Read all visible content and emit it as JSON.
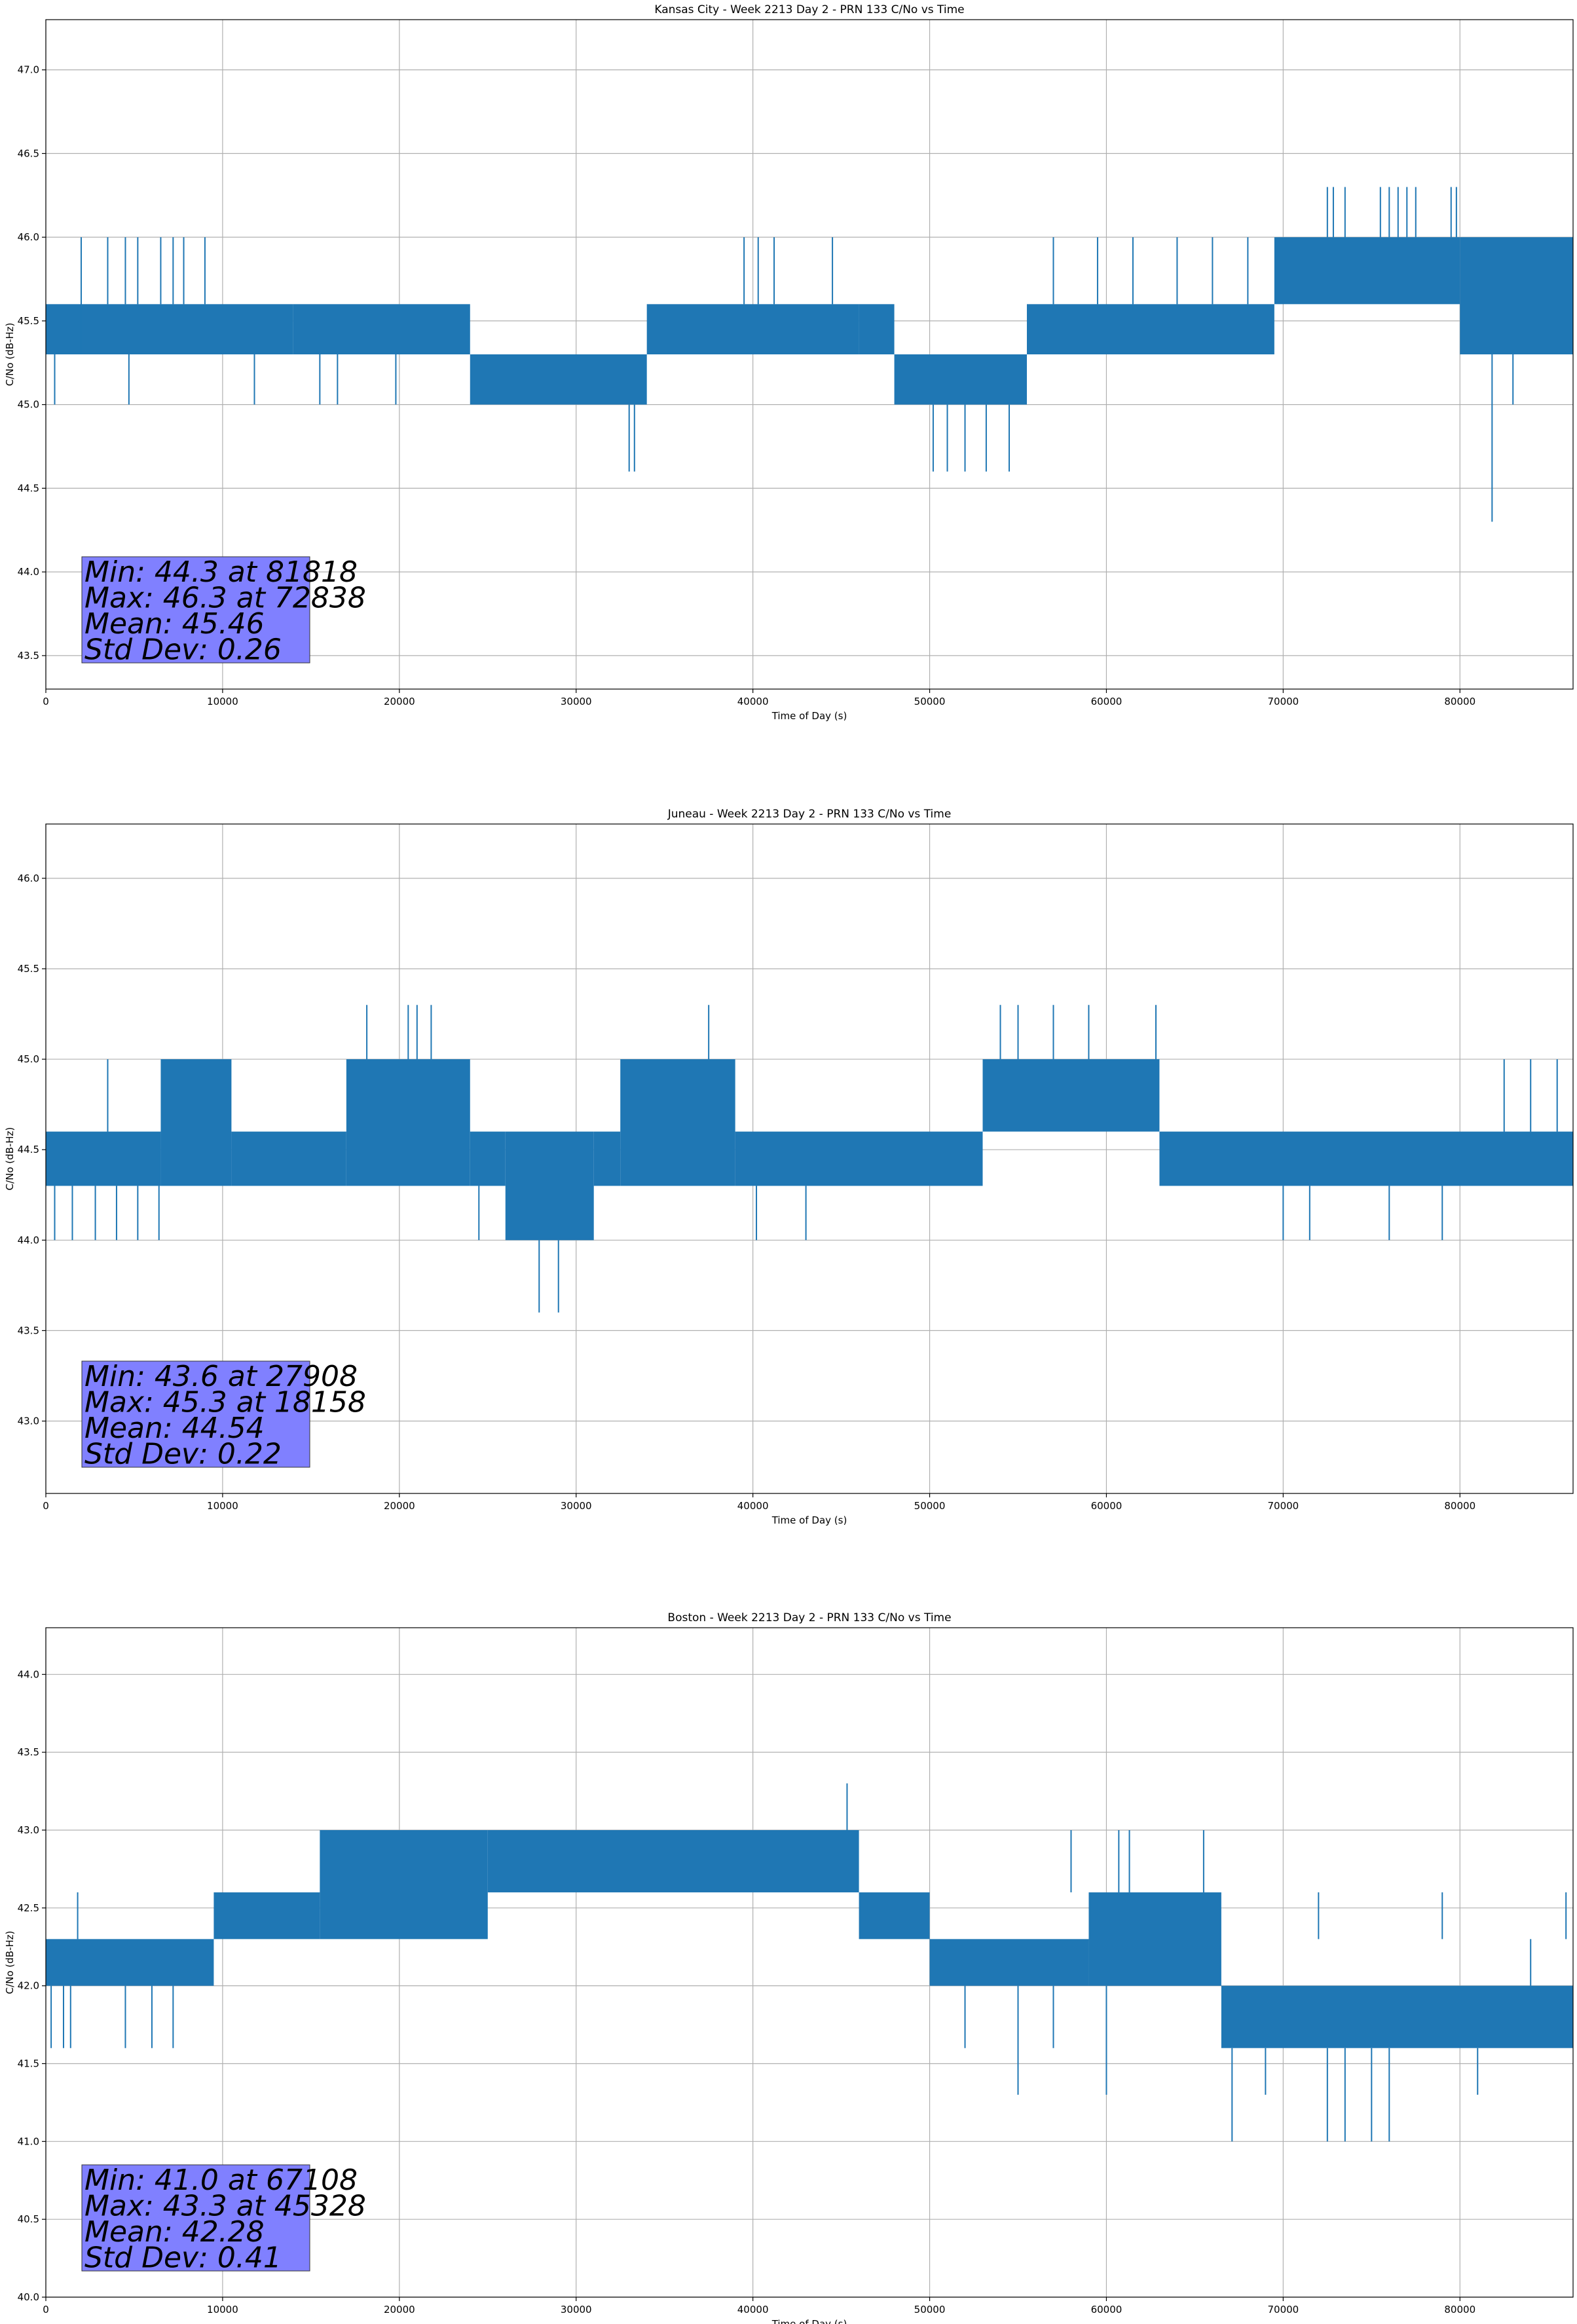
{
  "chart_data": [
    {
      "type": "line",
      "title": "Kansas City - Week 2213 Day 2 - PRN 133 C/No vs Time",
      "xlabel": "Time of Day (s)",
      "ylabel": "C/No (dB-Hz)",
      "xlim": [
        0,
        86400
      ],
      "ylim": [
        43.3,
        47.3
      ],
      "grid": true,
      "xticks": [
        0,
        10000,
        20000,
        30000,
        40000,
        50000,
        60000,
        70000,
        80000
      ],
      "yticks": [
        "43.5",
        "44.0",
        "44.5",
        "45.0",
        "45.5",
        "46.0",
        "46.5",
        "47.0"
      ],
      "color": "#1f77b4",
      "stats": [
        "Min: 44.3 at 81818",
        "Max: 46.3 at 72838",
        "Mean: 45.46",
        "Std Dev: 0.26"
      ],
      "series": [
        {
          "segments": [
            {
              "x0": 0,
              "x1": 14000,
              "lo": 45.3,
              "hi": 45.6
            },
            {
              "x0": 14000,
              "x1": 24000,
              "lo": 45.3,
              "hi": 45.6
            },
            {
              "x0": 24000,
              "x1": 34000,
              "lo": 45.0,
              "hi": 45.3
            },
            {
              "x0": 34000,
              "x1": 46000,
              "lo": 45.3,
              "hi": 45.6
            },
            {
              "x0": 46000,
              "x1": 48000,
              "lo": 45.3,
              "hi": 45.6
            },
            {
              "x0": 48000,
              "x1": 55500,
              "lo": 45.0,
              "hi": 45.3
            },
            {
              "x0": 55500,
              "x1": 69500,
              "lo": 45.3,
              "hi": 45.6
            },
            {
              "x0": 69500,
              "x1": 80000,
              "lo": 45.6,
              "hi": 46.0
            },
            {
              "x0": 80000,
              "x1": 86400,
              "lo": 45.3,
              "hi": 46.0
            }
          ],
          "spikes": [
            {
              "x": 2000,
              "lo": 45.3,
              "hi": 46.0
            },
            {
              "x": 3500,
              "lo": 45.6,
              "hi": 46.0
            },
            {
              "x": 4500,
              "lo": 45.6,
              "hi": 46.0
            },
            {
              "x": 5200,
              "lo": 45.6,
              "hi": 46.0
            },
            {
              "x": 6500,
              "lo": 45.6,
              "hi": 46.0
            },
            {
              "x": 7200,
              "lo": 45.6,
              "hi": 46.0
            },
            {
              "x": 7800,
              "lo": 45.6,
              "hi": 46.0
            },
            {
              "x": 9000,
              "lo": 45.6,
              "hi": 46.0
            },
            {
              "x": 500,
              "lo": 45.0,
              "hi": 45.3
            },
            {
              "x": 4700,
              "lo": 45.0,
              "hi": 45.3
            },
            {
              "x": 11800,
              "lo": 45.0,
              "hi": 45.3
            },
            {
              "x": 15500,
              "lo": 45.0,
              "hi": 45.3
            },
            {
              "x": 16500,
              "lo": 45.0,
              "hi": 45.3
            },
            {
              "x": 19800,
              "lo": 45.0,
              "hi": 45.3
            },
            {
              "x": 33000,
              "lo": 44.6,
              "hi": 45.0
            },
            {
              "x": 33300,
              "lo": 44.6,
              "hi": 45.0
            },
            {
              "x": 39500,
              "lo": 45.6,
              "hi": 46.0
            },
            {
              "x": 40300,
              "lo": 45.6,
              "hi": 46.0
            },
            {
              "x": 41200,
              "lo": 45.6,
              "hi": 46.0
            },
            {
              "x": 44500,
              "lo": 45.6,
              "hi": 46.0
            },
            {
              "x": 50200,
              "lo": 44.6,
              "hi": 45.0
            },
            {
              "x": 51000,
              "lo": 44.6,
              "hi": 45.0
            },
            {
              "x": 52000,
              "lo": 44.6,
              "hi": 45.0
            },
            {
              "x": 53200,
              "lo": 44.6,
              "hi": 45.0
            },
            {
              "x": 54500,
              "lo": 44.6,
              "hi": 45.0
            },
            {
              "x": 57000,
              "lo": 45.6,
              "hi": 46.0
            },
            {
              "x": 59500,
              "lo": 45.6,
              "hi": 46.0
            },
            {
              "x": 61500,
              "lo": 45.6,
              "hi": 46.0
            },
            {
              "x": 64000,
              "lo": 45.6,
              "hi": 46.0
            },
            {
              "x": 66000,
              "lo": 45.6,
              "hi": 46.0
            },
            {
              "x": 68000,
              "lo": 45.6,
              "hi": 46.0
            },
            {
              "x": 72500,
              "lo": 46.0,
              "hi": 46.3
            },
            {
              "x": 72838,
              "lo": 46.0,
              "hi": 46.3
            },
            {
              "x": 73500,
              "lo": 46.0,
              "hi": 46.3
            },
            {
              "x": 75500,
              "lo": 46.0,
              "hi": 46.3
            },
            {
              "x": 76000,
              "lo": 46.0,
              "hi": 46.3
            },
            {
              "x": 76500,
              "lo": 46.0,
              "hi": 46.3
            },
            {
              "x": 77000,
              "lo": 46.0,
              "hi": 46.3
            },
            {
              "x": 77500,
              "lo": 46.0,
              "hi": 46.3
            },
            {
              "x": 79500,
              "lo": 46.0,
              "hi": 46.3
            },
            {
              "x": 79800,
              "lo": 46.0,
              "hi": 46.3
            },
            {
              "x": 81818,
              "lo": 44.3,
              "hi": 45.3
            },
            {
              "x": 83000,
              "lo": 45.0,
              "hi": 45.3
            }
          ]
        }
      ]
    },
    {
      "type": "line",
      "title": "Juneau - Week 2213 Day 2 - PRN 133 C/No vs Time",
      "xlabel": "Time of Day (s)",
      "ylabel": "C/No (dB-Hz)",
      "xlim": [
        0,
        86400
      ],
      "ylim": [
        42.6,
        46.3
      ],
      "grid": true,
      "xticks": [
        0,
        10000,
        20000,
        30000,
        40000,
        50000,
        60000,
        70000,
        80000
      ],
      "yticks": [
        "43.0",
        "43.5",
        "44.0",
        "44.5",
        "45.0",
        "45.5",
        "46.0"
      ],
      "color": "#1f77b4",
      "stats": [
        "Min: 43.6 at 27908",
        "Max: 45.3 at 18158",
        "Mean: 44.54",
        "Std Dev: 0.22"
      ],
      "series": [
        {
          "segments": [
            {
              "x0": 0,
              "x1": 6500,
              "lo": 44.3,
              "hi": 44.6
            },
            {
              "x0": 6500,
              "x1": 10500,
              "lo": 44.3,
              "hi": 45.0
            },
            {
              "x0": 10500,
              "x1": 17000,
              "lo": 44.3,
              "hi": 44.6
            },
            {
              "x0": 17000,
              "x1": 24000,
              "lo": 44.3,
              "hi": 45.0
            },
            {
              "x0": 24000,
              "x1": 26000,
              "lo": 44.3,
              "hi": 44.6
            },
            {
              "x0": 26000,
              "x1": 31000,
              "lo": 44.0,
              "hi": 44.6
            },
            {
              "x0": 31000,
              "x1": 32500,
              "lo": 44.3,
              "hi": 44.6
            },
            {
              "x0": 32500,
              "x1": 39000,
              "lo": 44.3,
              "hi": 45.0
            },
            {
              "x0": 39000,
              "x1": 53000,
              "lo": 44.3,
              "hi": 44.6
            },
            {
              "x0": 53000,
              "x1": 63000,
              "lo": 44.6,
              "hi": 45.0
            },
            {
              "x0": 63000,
              "x1": 86400,
              "lo": 44.3,
              "hi": 44.6
            }
          ],
          "spikes": [
            {
              "x": 500,
              "lo": 44.0,
              "hi": 44.3
            },
            {
              "x": 1500,
              "lo": 44.0,
              "hi": 44.3
            },
            {
              "x": 2800,
              "lo": 44.0,
              "hi": 44.3
            },
            {
              "x": 3500,
              "lo": 44.6,
              "hi": 45.0
            },
            {
              "x": 4000,
              "lo": 44.0,
              "hi": 44.3
            },
            {
              "x": 5200,
              "lo": 44.0,
              "hi": 44.3
            },
            {
              "x": 6400,
              "lo": 44.0,
              "hi": 44.3
            },
            {
              "x": 18158,
              "lo": 45.0,
              "hi": 45.3
            },
            {
              "x": 20500,
              "lo": 45.0,
              "hi": 45.3
            },
            {
              "x": 21000,
              "lo": 45.0,
              "hi": 45.3
            },
            {
              "x": 21800,
              "lo": 45.0,
              "hi": 45.3
            },
            {
              "x": 24500,
              "lo": 44.0,
              "hi": 44.3
            },
            {
              "x": 27908,
              "lo": 43.6,
              "hi": 44.0
            },
            {
              "x": 29000,
              "lo": 43.6,
              "hi": 44.0
            },
            {
              "x": 37500,
              "lo": 45.0,
              "hi": 45.3
            },
            {
              "x": 40200,
              "lo": 44.0,
              "hi": 44.3
            },
            {
              "x": 43000,
              "lo": 44.0,
              "hi": 44.3
            },
            {
              "x": 54000,
              "lo": 45.0,
              "hi": 45.3
            },
            {
              "x": 55000,
              "lo": 45.0,
              "hi": 45.3
            },
            {
              "x": 57000,
              "lo": 45.0,
              "hi": 45.3
            },
            {
              "x": 59000,
              "lo": 45.0,
              "hi": 45.3
            },
            {
              "x": 62800,
              "lo": 45.0,
              "hi": 45.3
            },
            {
              "x": 70000,
              "lo": 44.0,
              "hi": 44.3
            },
            {
              "x": 71500,
              "lo": 44.0,
              "hi": 44.3
            },
            {
              "x": 76000,
              "lo": 44.0,
              "hi": 44.3
            },
            {
              "x": 79000,
              "lo": 44.0,
              "hi": 44.3
            },
            {
              "x": 82500,
              "lo": 44.6,
              "hi": 45.0
            },
            {
              "x": 84000,
              "lo": 44.6,
              "hi": 45.0
            },
            {
              "x": 85500,
              "lo": 44.6,
              "hi": 45.0
            }
          ]
        }
      ]
    },
    {
      "type": "line",
      "title": "Boston - Week 2213 Day 2 - PRN 133 C/No vs Time",
      "xlabel": "Time of Day (s)",
      "ylabel": "C/No (dB-Hz)",
      "xlim": [
        0,
        86400
      ],
      "ylim": [
        40.0,
        44.3
      ],
      "grid": true,
      "xticks": [
        0,
        10000,
        20000,
        30000,
        40000,
        50000,
        60000,
        70000,
        80000
      ],
      "yticks": [
        "40.0",
        "40.5",
        "41.0",
        "41.5",
        "42.0",
        "42.5",
        "43.0",
        "43.5",
        "44.0"
      ],
      "color": "#1f77b4",
      "stats": [
        "Min: 41.0 at 67108",
        "Max: 43.3 at 45328",
        "Mean: 42.28",
        "Std Dev: 0.41"
      ],
      "series": [
        {
          "segments": [
            {
              "x0": 0,
              "x1": 9500,
              "lo": 42.0,
              "hi": 42.3
            },
            {
              "x0": 9500,
              "x1": 15500,
              "lo": 42.3,
              "hi": 42.6
            },
            {
              "x0": 15500,
              "x1": 25000,
              "lo": 42.3,
              "hi": 43.0
            },
            {
              "x0": 25000,
              "x1": 46000,
              "lo": 42.6,
              "hi": 43.0
            },
            {
              "x0": 46000,
              "x1": 50000,
              "lo": 42.3,
              "hi": 42.6
            },
            {
              "x0": 50000,
              "x1": 59000,
              "lo": 42.0,
              "hi": 42.3
            },
            {
              "x0": 59000,
              "x1": 66500,
              "lo": 42.0,
              "hi": 42.6
            },
            {
              "x0": 66500,
              "x1": 86400,
              "lo": 41.6,
              "hi": 42.0
            }
          ],
          "spikes": [
            {
              "x": 300,
              "lo": 41.6,
              "hi": 42.0
            },
            {
              "x": 1000,
              "lo": 41.6,
              "hi": 42.0
            },
            {
              "x": 1400,
              "lo": 41.6,
              "hi": 42.0
            },
            {
              "x": 1800,
              "lo": 42.3,
              "hi": 42.6
            },
            {
              "x": 4500,
              "lo": 41.6,
              "hi": 42.0
            },
            {
              "x": 6000,
              "lo": 41.6,
              "hi": 42.0
            },
            {
              "x": 7200,
              "lo": 41.6,
              "hi": 42.0
            },
            {
              "x": 45328,
              "lo": 43.0,
              "hi": 43.3
            },
            {
              "x": 52000,
              "lo": 41.6,
              "hi": 42.0
            },
            {
              "x": 55000,
              "lo": 41.3,
              "hi": 42.0
            },
            {
              "x": 57000,
              "lo": 41.6,
              "hi": 42.0
            },
            {
              "x": 58000,
              "lo": 42.6,
              "hi": 43.0
            },
            {
              "x": 60000,
              "lo": 41.3,
              "hi": 42.0
            },
            {
              "x": 60700,
              "lo": 42.6,
              "hi": 43.0
            },
            {
              "x": 61300,
              "lo": 42.6,
              "hi": 43.0
            },
            {
              "x": 65500,
              "lo": 42.6,
              "hi": 43.0
            },
            {
              "x": 67108,
              "lo": 41.0,
              "hi": 41.6
            },
            {
              "x": 69000,
              "lo": 41.3,
              "hi": 41.6
            },
            {
              "x": 72000,
              "lo": 42.3,
              "hi": 42.6
            },
            {
              "x": 72500,
              "lo": 41.0,
              "hi": 41.6
            },
            {
              "x": 73500,
              "lo": 41.0,
              "hi": 41.6
            },
            {
              "x": 75000,
              "lo": 41.0,
              "hi": 41.6
            },
            {
              "x": 76000,
              "lo": 41.0,
              "hi": 41.6
            },
            {
              "x": 79000,
              "lo": 42.3,
              "hi": 42.6
            },
            {
              "x": 81000,
              "lo": 41.3,
              "hi": 41.6
            },
            {
              "x": 84000,
              "lo": 42.0,
              "hi": 42.3
            },
            {
              "x": 86000,
              "lo": 42.3,
              "hi": 42.6
            }
          ]
        }
      ]
    }
  ]
}
